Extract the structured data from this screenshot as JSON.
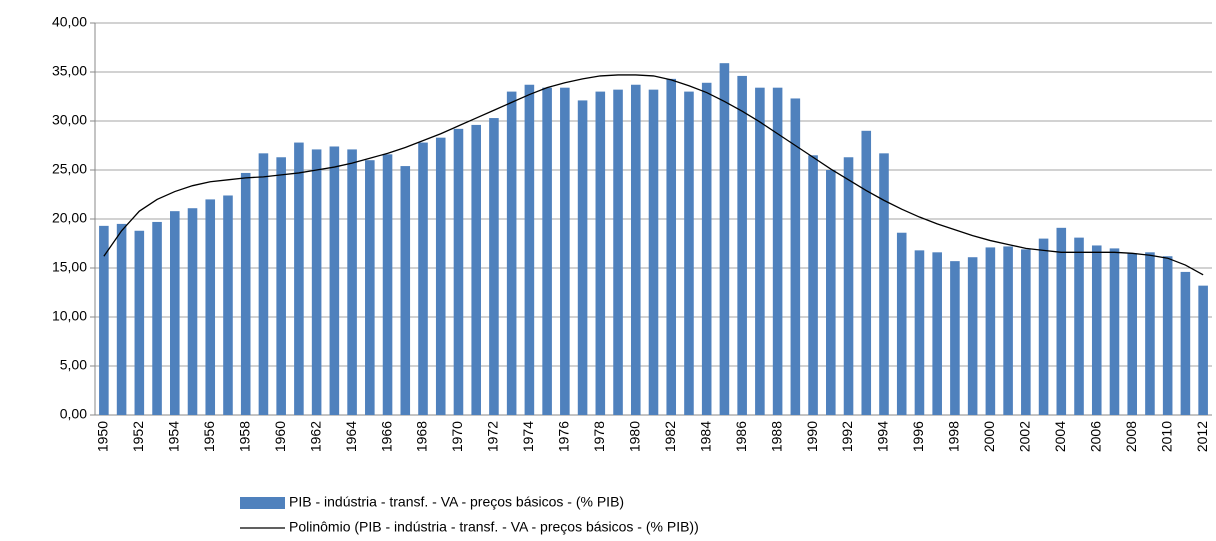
{
  "chart_data": {
    "type": "bar",
    "categories": [
      "1950",
      null,
      "1952",
      null,
      "1954",
      null,
      "1956",
      null,
      "1958",
      null,
      "1960",
      null,
      "1962",
      null,
      "1964",
      null,
      "1966",
      null,
      "1968",
      null,
      "1970",
      null,
      "1972",
      null,
      "1974",
      null,
      "1976",
      null,
      "1978",
      null,
      "1980",
      null,
      "1982",
      null,
      "1984",
      null,
      "1986",
      null,
      "1988",
      null,
      "1990",
      null,
      "1992",
      null,
      "1994",
      null,
      "1996",
      null,
      "1998",
      null,
      "2000",
      null,
      "2002",
      null,
      "2004",
      null,
      "2006",
      null,
      "2008",
      null,
      "2010",
      null,
      "2012"
    ],
    "series": [
      {
        "name": "PIB - indústria - transf. - VA - preços básicos - (% PIB)",
        "type": "bar",
        "color": "#4f81bd",
        "values": [
          19.3,
          19.5,
          18.8,
          19.7,
          20.8,
          21.1,
          22.0,
          22.4,
          24.7,
          26.7,
          26.3,
          27.8,
          27.1,
          27.4,
          27.1,
          26.0,
          26.6,
          25.4,
          27.8,
          28.3,
          29.2,
          29.6,
          30.3,
          33.0,
          33.7,
          33.4,
          33.4,
          32.1,
          33.0,
          33.2,
          33.7,
          33.2,
          34.3,
          33.0,
          33.9,
          35.9,
          34.6,
          33.4,
          33.4,
          32.3,
          26.5,
          25.0,
          26.3,
          29.0,
          26.7,
          18.6,
          16.8,
          16.6,
          15.7,
          16.1,
          17.1,
          17.2,
          16.9,
          18.0,
          19.1,
          18.1,
          17.3,
          17.0,
          16.5,
          16.6,
          16.2,
          14.6,
          13.2
        ]
      },
      {
        "name": "Polinômio (PIB - indústria - transf. - VA - preços básicos - (% PIB))",
        "type": "line",
        "color": "#000000",
        "values": [
          16.2,
          18.8,
          20.8,
          22.0,
          22.8,
          23.4,
          23.8,
          24.0,
          24.2,
          24.3,
          24.5,
          24.7,
          25.0,
          25.3,
          25.7,
          26.2,
          26.7,
          27.3,
          28.0,
          28.7,
          29.5,
          30.3,
          31.1,
          31.9,
          32.7,
          33.4,
          33.9,
          34.3,
          34.6,
          34.7,
          34.7,
          34.6,
          34.2,
          33.6,
          32.9,
          32.0,
          31.0,
          29.9,
          28.7,
          27.5,
          26.3,
          25.1,
          24.0,
          22.9,
          21.9,
          21.0,
          20.2,
          19.5,
          18.9,
          18.3,
          17.8,
          17.4,
          17.0,
          16.8,
          16.6,
          16.6,
          16.6,
          16.6,
          16.5,
          16.3,
          16.0,
          15.3,
          14.3
        ]
      }
    ],
    "ylim": [
      0,
      40
    ],
    "yticks": [
      {
        "value": 0,
        "label": "0,00"
      },
      {
        "value": 5,
        "label": "5,00"
      },
      {
        "value": 10,
        "label": "10,00"
      },
      {
        "value": 15,
        "label": "15,00"
      },
      {
        "value": 20,
        "label": "20,00"
      },
      {
        "value": 25,
        "label": "25,00"
      },
      {
        "value": 30,
        "label": "30,00"
      },
      {
        "value": 35,
        "label": "35,00"
      },
      {
        "value": 40,
        "label": "40,00"
      }
    ],
    "grid": true,
    "legend": "bottom"
  }
}
